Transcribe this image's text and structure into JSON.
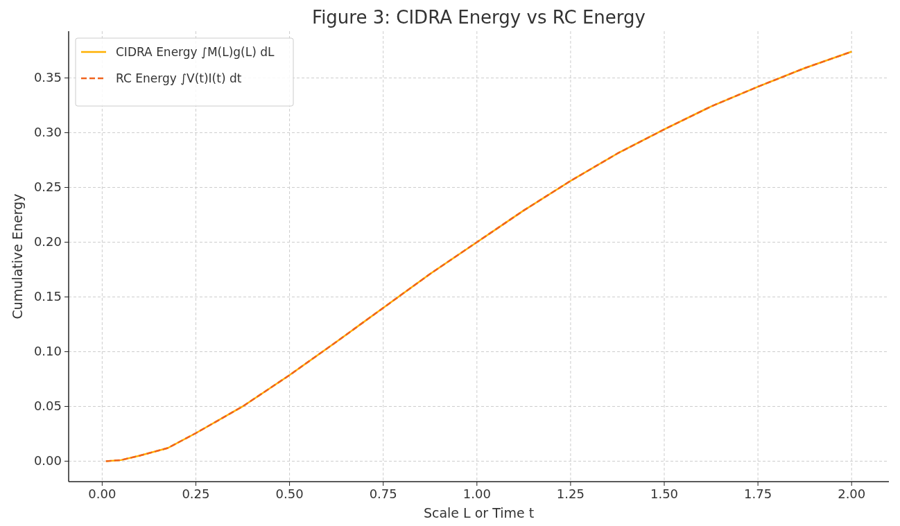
{
  "chart_data": {
    "type": "line",
    "title": "Figure 3: CIDRA Energy vs RC Energy",
    "xlabel": "Scale L or Time t",
    "ylabel": "Cumulative Energy",
    "x": [
      0.01,
      0.05,
      0.1,
      0.175,
      0.25,
      0.375,
      0.5,
      0.625,
      0.75,
      0.875,
      1.0,
      1.125,
      1.25,
      1.375,
      1.5,
      1.625,
      1.75,
      1.875,
      2.0
    ],
    "series": [
      {
        "name": "CIDRA Energy ∫M(L)g(L) dL",
        "color": "#ffb000",
        "line_style": "solid",
        "values": [
          0,
          0.001,
          0.005,
          0.012,
          0.0256,
          0.05,
          0.0786,
          0.109,
          0.14,
          0.171,
          0.2,
          0.229,
          0.256,
          0.281,
          0.303,
          0.324,
          0.342,
          0.359,
          0.374
        ]
      },
      {
        "name": "RC Energy ∫V(t)I(t) dt",
        "color": "#f0641e",
        "line_style": "dashed",
        "values": [
          0,
          0.001,
          0.005,
          0.012,
          0.0256,
          0.05,
          0.0786,
          0.109,
          0.14,
          0.171,
          0.2,
          0.229,
          0.256,
          0.281,
          0.303,
          0.324,
          0.342,
          0.359,
          0.374
        ]
      }
    ],
    "xlim": [
      -0.0895,
      2.0995
    ],
    "ylim": [
      -0.0187,
      0.3927
    ],
    "xticks": [
      {
        "value": 0,
        "label": "0.00"
      },
      {
        "value": 0.25,
        "label": "0.25"
      },
      {
        "value": 0.5,
        "label": "0.50"
      },
      {
        "value": 0.75,
        "label": "0.75"
      },
      {
        "value": 1,
        "label": "1.00"
      },
      {
        "value": 1.25,
        "label": "1.25"
      },
      {
        "value": 1.5,
        "label": "1.50"
      },
      {
        "value": 1.75,
        "label": "1.75"
      },
      {
        "value": 2,
        "label": "2.00"
      }
    ],
    "yticks": [
      {
        "value": 0,
        "label": "0.00"
      },
      {
        "value": 0.05,
        "label": "0.05"
      },
      {
        "value": 0.1,
        "label": "0.10"
      },
      {
        "value": 0.15,
        "label": "0.15"
      },
      {
        "value": 0.2,
        "label": "0.20"
      },
      {
        "value": 0.25,
        "label": "0.25"
      },
      {
        "value": 0.3,
        "label": "0.30"
      },
      {
        "value": 0.35,
        "label": "0.35"
      }
    ],
    "grid": true,
    "legend": "top left"
  }
}
